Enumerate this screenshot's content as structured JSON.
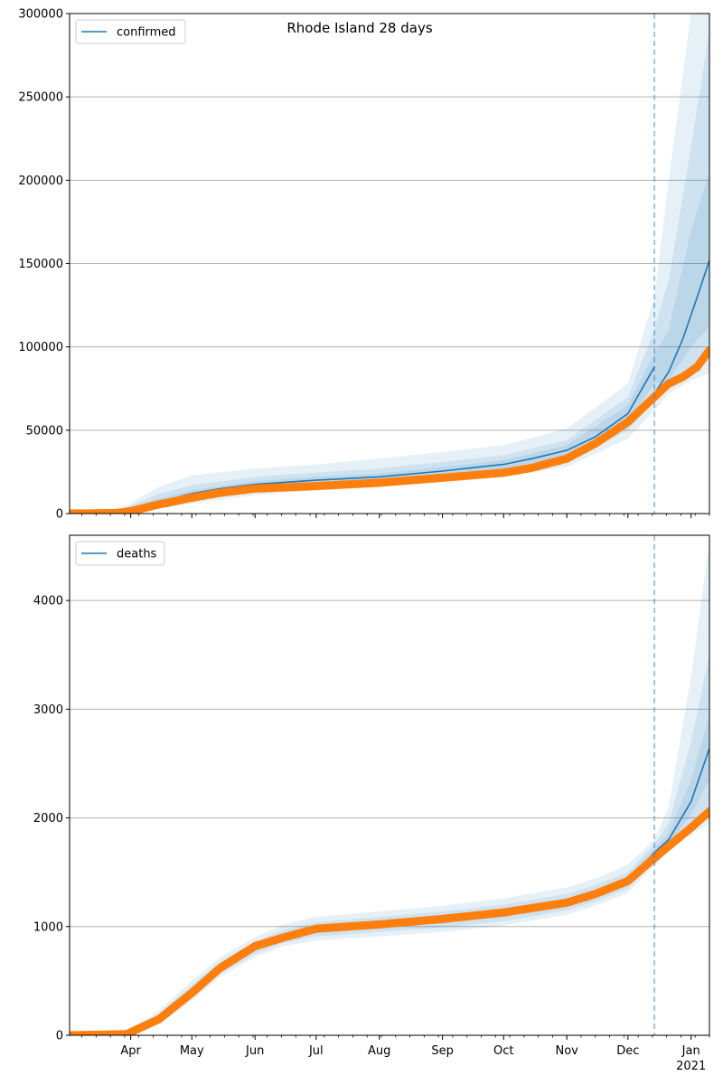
{
  "title": "Rhode Island 28 days",
  "colors": {
    "model": "#1f77b4",
    "observed": "#ff7f0e",
    "band": "#1f77b4",
    "grid": "#b0b0b0",
    "cutoff": "#1f77b4"
  },
  "x_axis": {
    "month_ticks": [
      {
        "date": "2020-04-01",
        "label": "Apr"
      },
      {
        "date": "2020-05-01",
        "label": "May"
      },
      {
        "date": "2020-06-01",
        "label": "Jun"
      },
      {
        "date": "2020-07-01",
        "label": "Jul"
      },
      {
        "date": "2020-08-01",
        "label": "Aug"
      },
      {
        "date": "2020-09-01",
        "label": "Sep"
      },
      {
        "date": "2020-10-01",
        "label": "Oct"
      },
      {
        "date": "2020-11-01",
        "label": "Nov"
      },
      {
        "date": "2020-12-01",
        "label": "Dec"
      },
      {
        "date": "2021-01-01",
        "label": "Jan"
      }
    ],
    "year_label": "2021",
    "range": [
      "2020-03-02",
      "2021-01-10"
    ],
    "cutoff_date": "2020-12-14"
  },
  "chart_data": [
    {
      "type": "line",
      "legend": "confirmed",
      "legend_position": "top-left",
      "grid": "horizontal",
      "ylim": [
        0,
        300000
      ],
      "yticks": [
        "0",
        "50000",
        "100000",
        "150000",
        "200000",
        "250000",
        "300000"
      ],
      "series": [
        {
          "name": "confirmed",
          "kind": "model",
          "points": [
            [
              "2020-03-02",
              0
            ],
            [
              "2020-03-25",
              500
            ],
            [
              "2020-04-01",
              2500
            ],
            [
              "2020-04-15",
              7000
            ],
            [
              "2020-05-01",
              12000
            ],
            [
              "2020-05-15",
              15000
            ],
            [
              "2020-06-01",
              17500
            ],
            [
              "2020-07-01",
              20000
            ],
            [
              "2020-08-01",
              22000
            ],
            [
              "2020-09-01",
              25500
            ],
            [
              "2020-10-01",
              29500
            ],
            [
              "2020-10-15",
              33000
            ],
            [
              "2020-11-01",
              38000
            ],
            [
              "2020-11-15",
              46000
            ],
            [
              "2020-12-01",
              60000
            ],
            [
              "2020-12-14",
              88000
            ]
          ]
        },
        {
          "name": "confirmed projection",
          "kind": "model",
          "points": [
            [
              "2020-12-14",
              72000
            ],
            [
              "2020-12-21",
              85000
            ],
            [
              "2020-12-28",
              105000
            ],
            [
              "2021-01-04",
              130000
            ],
            [
              "2021-01-10",
              152000
            ]
          ]
        },
        {
          "name": "confirmed observed",
          "kind": "observed",
          "points": [
            [
              "2020-03-02",
              0
            ],
            [
              "2020-03-25",
              300
            ],
            [
              "2020-04-01",
              1500
            ],
            [
              "2020-04-15",
              5500
            ],
            [
              "2020-05-01",
              9500
            ],
            [
              "2020-05-15",
              12500
            ],
            [
              "2020-06-01",
              15000
            ],
            [
              "2020-07-01",
              16500
            ],
            [
              "2020-08-01",
              18500
            ],
            [
              "2020-09-01",
              21500
            ],
            [
              "2020-10-01",
              24500
            ],
            [
              "2020-10-15",
              27500
            ],
            [
              "2020-11-01",
              33000
            ],
            [
              "2020-11-15",
              42000
            ],
            [
              "2020-12-01",
              55000
            ],
            [
              "2020-12-14",
              70000
            ],
            [
              "2020-12-21",
              78000
            ],
            [
              "2020-12-28",
              82000
            ],
            [
              "2021-01-04",
              88000
            ],
            [
              "2021-01-10",
              98000
            ]
          ]
        }
      ],
      "bands": [
        {
          "level": "outer",
          "points": [
            [
              "2020-03-02",
              0,
              0
            ],
            [
              "2020-03-25",
              0,
              1500
            ],
            [
              "2020-04-15",
              3000,
              16000
            ],
            [
              "2020-05-01",
              6000,
              23000
            ],
            [
              "2020-06-01",
              11000,
              27000
            ],
            [
              "2020-07-01",
              14000,
              29500
            ],
            [
              "2020-08-01",
              16000,
              33000
            ],
            [
              "2020-09-01",
              19000,
              37000
            ],
            [
              "2020-10-01",
              22000,
              41000
            ],
            [
              "2020-11-01",
              28000,
              51000
            ],
            [
              "2020-12-01",
              45000,
              78000
            ],
            [
              "2020-12-14",
              62000,
              130000
            ],
            [
              "2020-12-21",
              72000,
              200000
            ],
            [
              "2021-01-01",
              80000,
              300000
            ],
            [
              "2021-01-10",
              84000,
              300000
            ]
          ]
        },
        {
          "level": "middle",
          "points": [
            [
              "2020-03-02",
              0,
              0
            ],
            [
              "2020-03-25",
              0,
              1000
            ],
            [
              "2020-04-15",
              4500,
              12000
            ],
            [
              "2020-05-01",
              8000,
              17000
            ],
            [
              "2020-06-01",
              13000,
              22000
            ],
            [
              "2020-07-01",
              16000,
              24500
            ],
            [
              "2020-08-01",
              18000,
              27000
            ],
            [
              "2020-09-01",
              21000,
              31000
            ],
            [
              "2020-10-01",
              24500,
              35000
            ],
            [
              "2020-11-01",
              31000,
              44000
            ],
            [
              "2020-12-01",
              50000,
              70000
            ],
            [
              "2020-12-14",
              68000,
              110000
            ],
            [
              "2020-12-21",
              76000,
              140000
            ],
            [
              "2021-01-01",
              88000,
              220000
            ],
            [
              "2021-01-10",
              95000,
              290000
            ]
          ]
        },
        {
          "level": "inner",
          "points": [
            [
              "2020-03-02",
              0,
              0
            ],
            [
              "2020-03-25",
              200,
              700
            ],
            [
              "2020-04-15",
              6000,
              9000
            ],
            [
              "2020-05-01",
              10000,
              14000
            ],
            [
              "2020-06-01",
              15500,
              19500
            ],
            [
              "2020-07-01",
              18000,
              22000
            ],
            [
              "2020-08-01",
              20000,
              24000
            ],
            [
              "2020-09-01",
              23500,
              28000
            ],
            [
              "2020-10-01",
              27000,
              32000
            ],
            [
              "2020-11-01",
              34500,
              41000
            ],
            [
              "2020-12-01",
              55000,
              65000
            ],
            [
              "2020-12-14",
              78000,
              96000
            ],
            [
              "2020-12-21",
              80000,
              110000
            ],
            [
              "2021-01-01",
              100000,
              170000
            ],
            [
              "2021-01-10",
              112000,
              205000
            ]
          ]
        }
      ]
    },
    {
      "type": "line",
      "legend": "deaths",
      "legend_position": "top-left",
      "grid": "horizontal",
      "ylim": [
        0,
        4600
      ],
      "yticks": [
        "0",
        "1000",
        "2000",
        "3000",
        "4000"
      ],
      "series": [
        {
          "name": "deaths",
          "kind": "model",
          "points": [
            [
              "2020-03-02",
              0
            ],
            [
              "2020-03-30",
              5
            ],
            [
              "2020-04-15",
              160
            ],
            [
              "2020-05-01",
              400
            ],
            [
              "2020-05-15",
              620
            ],
            [
              "2020-06-01",
              800
            ],
            [
              "2020-06-15",
              900
            ],
            [
              "2020-07-01",
              970
            ],
            [
              "2020-08-01",
              1020
            ],
            [
              "2020-09-01",
              1060
            ],
            [
              "2020-10-01",
              1120
            ],
            [
              "2020-11-01",
              1220
            ],
            [
              "2020-11-15",
              1300
            ],
            [
              "2020-12-01",
              1420
            ],
            [
              "2020-12-14",
              1680
            ],
            [
              "2020-12-21",
              1800
            ],
            [
              "2021-01-01",
              2150
            ],
            [
              "2021-01-10",
              2640
            ]
          ]
        },
        {
          "name": "deaths observed",
          "kind": "observed",
          "points": [
            [
              "2020-03-02",
              0
            ],
            [
              "2020-03-30",
              10
            ],
            [
              "2020-04-15",
              150
            ],
            [
              "2020-05-01",
              390
            ],
            [
              "2020-05-15",
              620
            ],
            [
              "2020-06-01",
              820
            ],
            [
              "2020-06-15",
              900
            ],
            [
              "2020-07-01",
              980
            ],
            [
              "2020-08-01",
              1020
            ],
            [
              "2020-09-01",
              1070
            ],
            [
              "2020-10-01",
              1130
            ],
            [
              "2020-11-01",
              1220
            ],
            [
              "2020-11-15",
              1300
            ],
            [
              "2020-12-01",
              1420
            ],
            [
              "2020-12-14",
              1630
            ],
            [
              "2020-12-21",
              1740
            ],
            [
              "2021-01-01",
              1910
            ],
            [
              "2021-01-10",
              2060
            ]
          ]
        }
      ],
      "bands": [
        {
          "level": "outer",
          "points": [
            [
              "2020-03-02",
              0,
              0
            ],
            [
              "2020-03-30",
              0,
              30
            ],
            [
              "2020-04-15",
              100,
              230
            ],
            [
              "2020-05-01",
              320,
              500
            ],
            [
              "2020-05-15",
              540,
              720
            ],
            [
              "2020-06-01",
              720,
              900
            ],
            [
              "2020-06-15",
              820,
              1020
            ],
            [
              "2020-07-01",
              870,
              1090
            ],
            [
              "2020-08-01",
              910,
              1140
            ],
            [
              "2020-09-01",
              950,
              1190
            ],
            [
              "2020-10-01",
              1010,
              1260
            ],
            [
              "2020-11-01",
              1110,
              1360
            ],
            [
              "2020-11-15",
              1190,
              1440
            ],
            [
              "2020-12-01",
              1310,
              1570
            ],
            [
              "2020-12-14",
              1560,
              1800
            ],
            [
              "2020-12-21",
              1700,
              2100
            ],
            [
              "2021-01-01",
              1850,
              3300
            ],
            [
              "2021-01-10",
              1950,
              4550
            ]
          ]
        },
        {
          "level": "middle",
          "points": [
            [
              "2020-03-02",
              0,
              0
            ],
            [
              "2020-03-30",
              0,
              20
            ],
            [
              "2020-04-15",
              120,
              200
            ],
            [
              "2020-05-01",
              350,
              460
            ],
            [
              "2020-05-15",
              570,
              680
            ],
            [
              "2020-06-01",
              750,
              860
            ],
            [
              "2020-06-15",
              850,
              970
            ],
            [
              "2020-07-01",
              910,
              1040
            ],
            [
              "2020-08-01",
              950,
              1090
            ],
            [
              "2020-09-01",
              990,
              1140
            ],
            [
              "2020-10-01",
              1050,
              1200
            ],
            [
              "2020-11-01",
              1150,
              1300
            ],
            [
              "2020-11-15",
              1230,
              1380
            ],
            [
              "2020-12-01",
              1350,
              1500
            ],
            [
              "2020-12-14",
              1600,
              1760
            ],
            [
              "2020-12-21",
              1730,
              1950
            ],
            [
              "2021-01-01",
              1950,
              2700
            ],
            [
              "2021-01-10",
              2100,
              3500
            ]
          ]
        },
        {
          "level": "inner",
          "points": [
            [
              "2020-03-02",
              0,
              0
            ],
            [
              "2020-03-30",
              0,
              10
            ],
            [
              "2020-04-15",
              140,
              180
            ],
            [
              "2020-05-01",
              380,
              430
            ],
            [
              "2020-05-15",
              600,
              650
            ],
            [
              "2020-06-01",
              780,
              830
            ],
            [
              "2020-06-15",
              880,
              930
            ],
            [
              "2020-07-01",
              945,
              1000
            ],
            [
              "2020-08-01",
              990,
              1050
            ],
            [
              "2020-09-01",
              1030,
              1095
            ],
            [
              "2020-10-01",
              1090,
              1155
            ],
            [
              "2020-11-01",
              1190,
              1255
            ],
            [
              "2020-11-15",
              1270,
              1335
            ],
            [
              "2020-12-01",
              1390,
              1455
            ],
            [
              "2020-12-14",
              1640,
              1720
            ],
            [
              "2020-12-21",
              1760,
              1860
            ],
            [
              "2021-01-01",
              2030,
              2350
            ],
            [
              "2021-01-10",
              2350,
              2950
            ]
          ]
        }
      ]
    }
  ]
}
